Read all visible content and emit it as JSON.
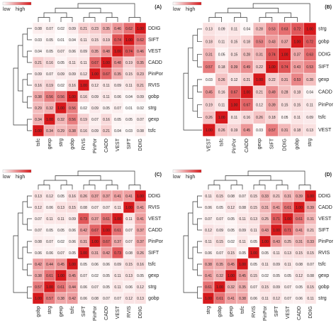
{
  "chart_data": [
    {
      "type": "heatmap",
      "label": "(A)",
      "legend_low": "low",
      "legend_high": "high",
      "labels": [
        "tsfc",
        "gexp",
        "strg",
        "gobp",
        "RVIS",
        "PinPor",
        "CADD",
        "VEST",
        "SIFT",
        "DDIG"
      ],
      "diagonal": {
        "value": 1,
        "label": "1.00"
      },
      "values": [
        [
          null,
          0.34,
          0.29,
          0.38,
          0.16,
          0.09,
          0.21,
          0.04,
          0.03,
          0.08
        ],
        [
          0.34,
          null,
          0.32,
          0.56,
          0.19,
          0.07,
          0.16,
          0.05,
          0.05,
          0.07
        ],
        [
          0.29,
          0.32,
          null,
          0.56,
          0.02,
          0.09,
          0.05,
          0.07,
          0.01,
          0.02
        ],
        [
          0.38,
          0.56,
          0.56,
          null,
          0.16,
          0.09,
          0.11,
          0.06,
          0.04,
          0.09
        ],
        [
          0.16,
          0.19,
          0.02,
          0.16,
          null,
          0.12,
          0.11,
          0.09,
          0.11,
          0.21
        ],
        [
          0.09,
          0.07,
          0.09,
          0.09,
          0.12,
          null,
          0.67,
          0.35,
          0.15,
          0.23
        ],
        [
          0.21,
          0.16,
          0.05,
          0.11,
          0.11,
          0.67,
          null,
          0.48,
          0.19,
          0.35
        ],
        [
          0.04,
          0.05,
          0.07,
          0.06,
          0.09,
          0.35,
          0.48,
          null,
          0.74,
          0.46
        ],
        [
          0.03,
          0.05,
          0.01,
          0.04,
          0.11,
          0.15,
          0.19,
          0.74,
          null,
          0.62
        ],
        [
          0.08,
          0.07,
          0.02,
          0.09,
          0.21,
          0.23,
          0.35,
          0.46,
          0.62,
          null
        ]
      ]
    },
    {
      "type": "heatmap",
      "label": "(B)",
      "legend_low": "low",
      "legend_high": "high",
      "labels": [
        "VEST",
        "tsfc",
        "PinPor",
        "CADD",
        "gexp",
        "SIFT",
        "DDIG",
        "gobp",
        "strg"
      ],
      "diagonal": {
        "value": 1,
        "label": "1.00"
      },
      "values": [
        [
          null,
          0.26,
          0.19,
          0.45,
          0.03,
          0.57,
          0.31,
          0.18,
          0.13
        ],
        [
          0.26,
          null,
          0.11,
          0.16,
          0.26,
          0.18,
          0.05,
          0.11,
          0.09
        ],
        [
          0.19,
          0.11,
          null,
          0.67,
          0.12,
          0.39,
          0.15,
          0.15,
          0.11
        ],
        [
          0.45,
          0.16,
          0.67,
          null,
          0.21,
          0.49,
          0.28,
          0.18,
          0.04
        ],
        [
          0.03,
          0.26,
          0.12,
          0.21,
          null,
          0.22,
          0.31,
          0.53,
          0.28
        ],
        [
          0.57,
          0.18,
          0.39,
          0.49,
          0.22,
          null,
          0.74,
          0.43,
          0.53
        ],
        [
          0.31,
          0.05,
          0.15,
          0.28,
          0.31,
          0.74,
          null,
          0.37,
          0.63
        ],
        [
          0.18,
          0.11,
          0.15,
          0.18,
          0.53,
          0.43,
          0.37,
          null,
          0.72
        ],
        [
          0.13,
          0.09,
          0.11,
          0.04,
          0.28,
          0.53,
          0.63,
          0.72,
          null
        ]
      ]
    },
    {
      "type": "heatmap",
      "label": "(C)",
      "legend_low": "low",
      "legend_high": "high",
      "labels": [
        "gobp",
        "strg",
        "gexp",
        "tsfc",
        "SIFT",
        "PinPor",
        "CADD",
        "VEST",
        "RVIS",
        "DDIG"
      ],
      "diagonal": {
        "value": 1,
        "label": "1.00"
      },
      "values": [
        [
          null,
          0.57,
          0.38,
          0.42,
          0.06,
          0.08,
          0.07,
          0.07,
          0.12,
          0.13
        ],
        [
          0.57,
          null,
          0.61,
          0.44,
          0.06,
          0.07,
          0.05,
          0.11,
          0.06,
          0.12
        ],
        [
          0.38,
          0.61,
          null,
          0.45,
          0.07,
          0.02,
          0.05,
          0.11,
          0.13,
          0.05
        ],
        [
          0.42,
          0.44,
          0.45,
          null,
          0.05,
          0.06,
          0.06,
          0.09,
          0.15,
          0.16
        ],
        [
          0.06,
          0.06,
          0.07,
          0.05,
          null,
          0.31,
          0.42,
          0.73,
          0.08,
          0.26
        ],
        [
          0.08,
          0.07,
          0.02,
          0.06,
          0.31,
          null,
          0.67,
          0.37,
          0.07,
          0.37
        ],
        [
          0.07,
          0.05,
          0.05,
          0.06,
          0.42,
          0.67,
          null,
          0.61,
          0.07,
          0.37
        ],
        [
          0.07,
          0.11,
          0.11,
          0.09,
          0.73,
          0.37,
          0.61,
          null,
          0.11,
          0.41
        ],
        [
          0.12,
          0.06,
          0.13,
          0.15,
          0.08,
          0.07,
          0.07,
          0.11,
          null,
          0.41
        ],
        [
          0.13,
          0.12,
          0.05,
          0.16,
          0.26,
          0.37,
          0.37,
          0.41,
          0.41,
          null
        ]
      ]
    },
    {
      "type": "heatmap",
      "label": "(D)",
      "legend_low": "low",
      "legend_high": "high",
      "labels": [
        "strg",
        "gobp",
        "gexp",
        "tsfc",
        "RVIS",
        "PinPor",
        "SIFT",
        "VEST",
        "CADD",
        "DDIG"
      ],
      "diagonal": {
        "value": 1,
        "label": "1.00"
      },
      "values": [
        [
          null,
          0.61,
          0.41,
          0.38,
          0.06,
          0.11,
          0.12,
          0.07,
          0.06,
          0.11
        ],
        [
          0.61,
          null,
          0.32,
          0.35,
          0.07,
          0.15,
          0.09,
          0.07,
          0.05,
          0.15
        ],
        [
          0.41,
          0.32,
          null,
          0.45,
          0.15,
          0.02,
          0.05,
          0.05,
          0.12,
          0.08
        ],
        [
          0.38,
          0.35,
          0.45,
          null,
          0.05,
          0.11,
          0.09,
          0.11,
          0.08,
          0.07
        ],
        [
          0.06,
          0.07,
          0.15,
          0.05,
          null,
          0.05,
          0.11,
          0.13,
          0.15,
          0.15
        ],
        [
          0.11,
          0.15,
          0.02,
          0.11,
          0.05,
          null,
          0.43,
          0.25,
          0.31,
          0.33
        ],
        [
          0.12,
          0.09,
          0.05,
          0.09,
          0.11,
          0.43,
          null,
          0.71,
          0.41,
          0.21
        ],
        [
          0.07,
          0.07,
          0.05,
          0.11,
          0.13,
          0.25,
          0.71,
          null,
          0.61,
          0.31
        ],
        [
          0.06,
          0.05,
          0.12,
          0.08,
          0.15,
          0.31,
          0.41,
          0.61,
          null,
          0.39
        ],
        [
          0.11,
          0.15,
          0.08,
          0.07,
          0.15,
          0.33,
          0.21,
          0.31,
          0.39,
          null
        ]
      ]
    }
  ]
}
